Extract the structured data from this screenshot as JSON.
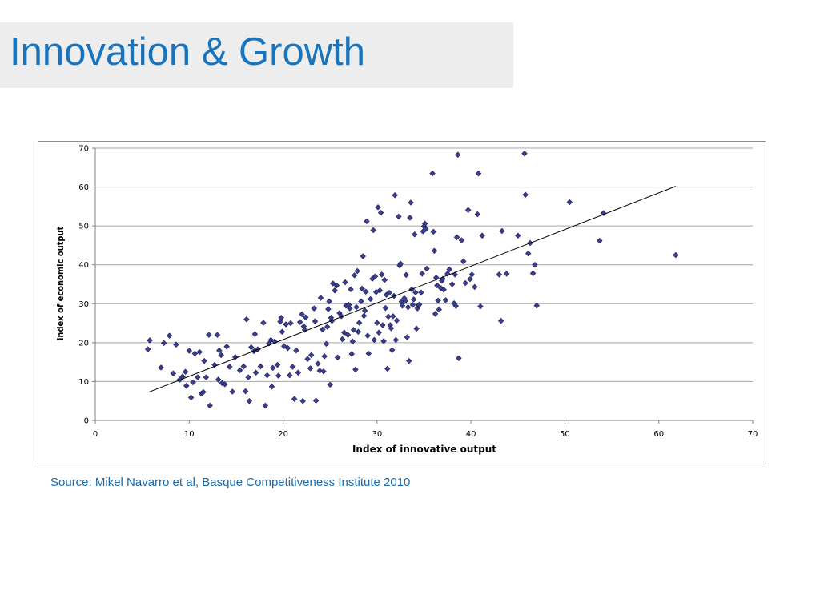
{
  "slide": {
    "title": "Innovation & Growth",
    "source": "Source: Mikel Navarro et al, Basque Competitiveness Institute 2010"
  },
  "colors": {
    "title": "#1a74bd",
    "source": "#1b6aa8",
    "title_band": "#ededed",
    "marker_fill": "#3a3f8f",
    "marker_stroke": "#1c1f55",
    "gridline": "#a6a6a6",
    "trendline": "#000000"
  },
  "chart_data": {
    "type": "scatter",
    "title": "",
    "xlabel": "Index of innovative output",
    "ylabel": "Index of economic output",
    "xlim": [
      0,
      70
    ],
    "ylim": [
      0,
      70
    ],
    "xticks": [
      0,
      10,
      20,
      30,
      40,
      50,
      60,
      70
    ],
    "yticks": [
      0,
      10,
      20,
      30,
      40,
      50,
      60,
      70
    ],
    "grid": "horizontal",
    "legend": "none",
    "marker": "diamond",
    "trendline": {
      "x": [
        5.7,
        61.8
      ],
      "y": [
        7.3,
        60.2
      ]
    },
    "points": [
      [
        5.6,
        18.3
      ],
      [
        5.8,
        20.6
      ],
      [
        7.0,
        13.6
      ],
      [
        7.3,
        19.9
      ],
      [
        7.9,
        21.8
      ],
      [
        8.3,
        12.1
      ],
      [
        8.6,
        19.5
      ],
      [
        9.0,
        10.5
      ],
      [
        9.3,
        11.3
      ],
      [
        9.6,
        12.5
      ],
      [
        9.7,
        8.9
      ],
      [
        10.0,
        17.9
      ],
      [
        10.2,
        5.9
      ],
      [
        10.4,
        9.8
      ],
      [
        10.6,
        17.2
      ],
      [
        10.9,
        11.1
      ],
      [
        11.1,
        17.6
      ],
      [
        11.3,
        6.9
      ],
      [
        11.5,
        7.3
      ],
      [
        11.6,
        15.3
      ],
      [
        11.8,
        11.1
      ],
      [
        12.1,
        22.0
      ],
      [
        12.2,
        3.8
      ],
      [
        12.7,
        14.3
      ],
      [
        13.0,
        22.0
      ],
      [
        13.1,
        10.5
      ],
      [
        13.2,
        18.0
      ],
      [
        13.4,
        16.8
      ],
      [
        13.5,
        9.6
      ],
      [
        13.8,
        9.3
      ],
      [
        14.0,
        19.0
      ],
      [
        14.3,
        13.8
      ],
      [
        14.6,
        7.4
      ],
      [
        14.9,
        16.3
      ],
      [
        15.4,
        12.9
      ],
      [
        15.8,
        13.9
      ],
      [
        16.0,
        7.5
      ],
      [
        16.1,
        26.0
      ],
      [
        16.3,
        11.1
      ],
      [
        16.4,
        5.0
      ],
      [
        16.6,
        18.8
      ],
      [
        16.9,
        17.8
      ],
      [
        17.0,
        22.2
      ],
      [
        17.1,
        12.3
      ],
      [
        17.3,
        18.3
      ],
      [
        17.6,
        13.9
      ],
      [
        17.9,
        25.1
      ],
      [
        18.1,
        3.8
      ],
      [
        18.3,
        11.6
      ],
      [
        18.5,
        19.8
      ],
      [
        18.7,
        20.7
      ],
      [
        18.8,
        8.7
      ],
      [
        18.9,
        13.5
      ],
      [
        19.1,
        20.3
      ],
      [
        19.4,
        14.3
      ],
      [
        19.5,
        11.5
      ],
      [
        19.7,
        25.4
      ],
      [
        19.8,
        26.4
      ],
      [
        19.9,
        22.8
      ],
      [
        20.1,
        19.1
      ],
      [
        20.3,
        24.7
      ],
      [
        20.5,
        18.6
      ],
      [
        20.7,
        11.6
      ],
      [
        20.8,
        25.0
      ],
      [
        21.0,
        13.8
      ],
      [
        21.2,
        5.5
      ],
      [
        21.4,
        18.0
      ],
      [
        21.6,
        12.3
      ],
      [
        21.8,
        25.3
      ],
      [
        22.0,
        27.3
      ],
      [
        22.1,
        5.0
      ],
      [
        22.2,
        24.2
      ],
      [
        22.3,
        23.3
      ],
      [
        22.4,
        26.5
      ],
      [
        22.6,
        15.8
      ],
      [
        22.9,
        13.4
      ],
      [
        23.0,
        16.8
      ],
      [
        23.3,
        28.8
      ],
      [
        23.4,
        25.5
      ],
      [
        23.5,
        5.1
      ],
      [
        23.7,
        14.6
      ],
      [
        23.9,
        12.8
      ],
      [
        24.0,
        31.5
      ],
      [
        24.2,
        23.4
      ],
      [
        24.3,
        12.6
      ],
      [
        24.4,
        16.5
      ],
      [
        24.6,
        19.7
      ],
      [
        24.7,
        24.1
      ],
      [
        24.8,
        28.6
      ],
      [
        24.9,
        30.6
      ],
      [
        25.0,
        9.2
      ],
      [
        25.1,
        26.4
      ],
      [
        25.2,
        25.6
      ],
      [
        25.3,
        35.2
      ],
      [
        25.5,
        33.4
      ],
      [
        25.7,
        34.7
      ],
      [
        25.8,
        16.2
      ],
      [
        26.0,
        27.6
      ],
      [
        26.2,
        26.8
      ],
      [
        26.3,
        20.9
      ],
      [
        26.5,
        22.6
      ],
      [
        26.6,
        35.5
      ],
      [
        26.7,
        29.5
      ],
      [
        26.9,
        22.0
      ],
      [
        27.0,
        29.7
      ],
      [
        27.1,
        28.8
      ],
      [
        27.2,
        33.7
      ],
      [
        27.3,
        17.1
      ],
      [
        27.4,
        20.3
      ],
      [
        27.5,
        23.3
      ],
      [
        27.6,
        37.3
      ],
      [
        27.7,
        13.1
      ],
      [
        27.8,
        29.1
      ],
      [
        27.9,
        38.4
      ],
      [
        28.0,
        22.8
      ],
      [
        28.1,
        25.1
      ],
      [
        28.3,
        30.6
      ],
      [
        28.4,
        33.9
      ],
      [
        28.5,
        42.2
      ],
      [
        28.6,
        26.9
      ],
      [
        28.7,
        28.2
      ],
      [
        28.8,
        33.1
      ],
      [
        28.9,
        51.2
      ],
      [
        29.0,
        21.8
      ],
      [
        29.1,
        17.2
      ],
      [
        29.3,
        31.2
      ],
      [
        29.5,
        36.4
      ],
      [
        29.6,
        48.9
      ],
      [
        29.7,
        20.7
      ],
      [
        29.8,
        37.0
      ],
      [
        29.9,
        33.0
      ],
      [
        30.0,
        25.1
      ],
      [
        30.1,
        54.8
      ],
      [
        30.2,
        22.6
      ],
      [
        30.3,
        33.4
      ],
      [
        30.4,
        53.4
      ],
      [
        30.5,
        37.5
      ],
      [
        30.6,
        24.5
      ],
      [
        30.7,
        20.4
      ],
      [
        30.8,
        36.1
      ],
      [
        30.9,
        28.9
      ],
      [
        31.0,
        32.3
      ],
      [
        31.1,
        13.3
      ],
      [
        31.2,
        26.7
      ],
      [
        31.3,
        32.8
      ],
      [
        31.4,
        24.5
      ],
      [
        31.5,
        23.7
      ],
      [
        31.6,
        18.1
      ],
      [
        31.7,
        26.8
      ],
      [
        31.8,
        32.0
      ],
      [
        31.9,
        57.9
      ],
      [
        32.0,
        20.7
      ],
      [
        32.1,
        25.7
      ],
      [
        32.3,
        52.4
      ],
      [
        32.4,
        39.8
      ],
      [
        32.5,
        40.3
      ],
      [
        32.6,
        30.5
      ],
      [
        32.7,
        29.5
      ],
      [
        32.9,
        31.4
      ],
      [
        33.0,
        30.7
      ],
      [
        33.1,
        37.4
      ],
      [
        33.2,
        21.4
      ],
      [
        33.3,
        29.1
      ],
      [
        33.4,
        15.3
      ],
      [
        33.5,
        52.1
      ],
      [
        33.6,
        56.0
      ],
      [
        33.7,
        33.7
      ],
      [
        33.8,
        29.7
      ],
      [
        33.9,
        31.1
      ],
      [
        34.0,
        47.8
      ],
      [
        34.1,
        32.9
      ],
      [
        34.2,
        23.6
      ],
      [
        34.3,
        28.8
      ],
      [
        34.4,
        29.5
      ],
      [
        34.5,
        29.8
      ],
      [
        34.7,
        32.9
      ],
      [
        34.8,
        37.7
      ],
      [
        34.9,
        48.6
      ],
      [
        35.0,
        49.9
      ],
      [
        35.1,
        50.6
      ],
      [
        35.2,
        49.2
      ],
      [
        35.3,
        39.0
      ],
      [
        35.9,
        63.5
      ],
      [
        36.0,
        48.5
      ],
      [
        36.1,
        43.6
      ],
      [
        36.2,
        27.4
      ],
      [
        36.3,
        36.7
      ],
      [
        36.4,
        34.7
      ],
      [
        36.5,
        30.8
      ],
      [
        36.6,
        28.5
      ],
      [
        36.8,
        34.0
      ],
      [
        36.9,
        35.9
      ],
      [
        37.0,
        36.4
      ],
      [
        37.1,
        33.6
      ],
      [
        37.3,
        30.9
      ],
      [
        37.5,
        37.7
      ],
      [
        37.7,
        38.8
      ],
      [
        38.0,
        35.0
      ],
      [
        38.2,
        30.1
      ],
      [
        38.3,
        37.5
      ],
      [
        38.4,
        29.4
      ],
      [
        38.5,
        47.1
      ],
      [
        38.6,
        68.3
      ],
      [
        38.7,
        16.0
      ],
      [
        39.0,
        46.3
      ],
      [
        39.2,
        40.9
      ],
      [
        39.4,
        35.3
      ],
      [
        39.7,
        54.1
      ],
      [
        39.9,
        36.3
      ],
      [
        40.1,
        37.5
      ],
      [
        40.4,
        34.3
      ],
      [
        40.7,
        53.0
      ],
      [
        40.8,
        63.5
      ],
      [
        41.0,
        29.3
      ],
      [
        41.2,
        47.5
      ],
      [
        43.0,
        37.5
      ],
      [
        43.2,
        25.6
      ],
      [
        43.3,
        48.7
      ],
      [
        43.8,
        37.7
      ],
      [
        45.0,
        47.5
      ],
      [
        45.7,
        68.6
      ],
      [
        45.8,
        58.0
      ],
      [
        46.1,
        42.9
      ],
      [
        46.3,
        45.6
      ],
      [
        46.6,
        37.8
      ],
      [
        46.8,
        40.0
      ],
      [
        47.0,
        29.5
      ],
      [
        50.5,
        56.1
      ],
      [
        53.7,
        46.2
      ],
      [
        54.1,
        53.3
      ],
      [
        61.8,
        42.5
      ]
    ]
  }
}
